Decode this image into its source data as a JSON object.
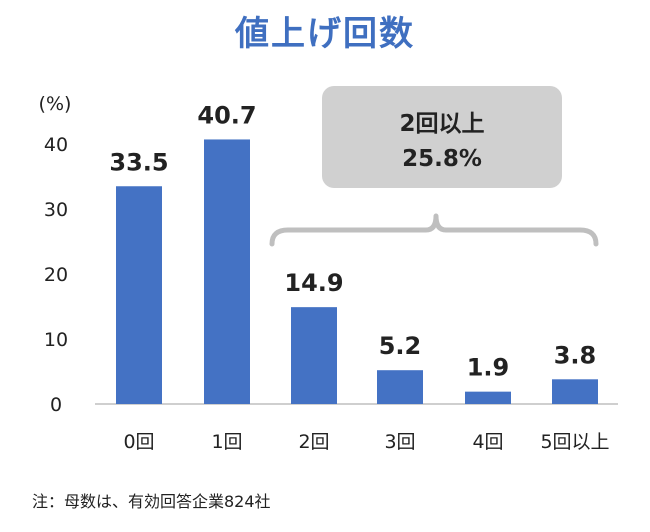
{
  "title": "値上げ回数",
  "footnote": "注：母数は、有効回答企業824社",
  "callout": {
    "line1": "2回以上",
    "line2": "25.8%"
  },
  "colors": {
    "title": "#3f6fc0",
    "bar": "#4472c4",
    "axis": "#bfbfbf",
    "text": "#222222",
    "callout_bg": "#d0d0d0",
    "bracket": "#bfbfbf"
  },
  "chart_data": {
    "type": "bar",
    "unit_label": "(%)",
    "categories": [
      "0回",
      "1回",
      "2回",
      "3回",
      "4回",
      "5回以上"
    ],
    "values": [
      33.5,
      40.7,
      14.9,
      5.2,
      1.9,
      3.8
    ],
    "ylim": [
      0,
      40
    ],
    "yticks": [
      0,
      10,
      20,
      30,
      40
    ],
    "grid": false
  }
}
